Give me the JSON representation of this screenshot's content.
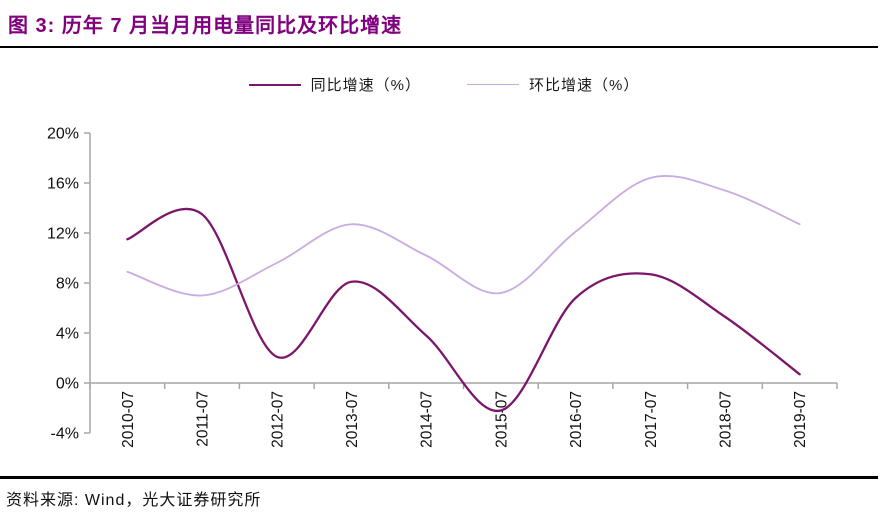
{
  "header": {
    "title": "图 3: 历年 7 月当月用电量同比及环比增速"
  },
  "source": {
    "text": "资料来源: Wind，光大证券研究所"
  },
  "colors": {
    "title": "#800080",
    "rule": "#000000",
    "axis": "#A6A6A6",
    "tick_label": "#111111",
    "series_yoy": "#7B166B",
    "series_mom": "#C9ABE2"
  },
  "chart_data": {
    "type": "line",
    "title": "历年7月当月用电量同比及环比增速",
    "categories": [
      "2010-07",
      "2011-07",
      "2012-07",
      "2013-07",
      "2014-07",
      "2015-07",
      "2016-07",
      "2017-07",
      "2018-07",
      "2019-07"
    ],
    "series": [
      {
        "name": "同比增速（%）",
        "color": "#7B166B",
        "width": 2.3,
        "values": [
          11.5,
          13.5,
          2.1,
          8.1,
          3.8,
          -2.2,
          6.8,
          8.7,
          5.3,
          0.7
        ]
      },
      {
        "name": "环比增速（%）",
        "color": "#C9ABE2",
        "width": 1.8,
        "values": [
          8.9,
          7.0,
          9.6,
          12.7,
          10.2,
          7.2,
          12.1,
          16.4,
          15.4,
          12.7
        ]
      }
    ],
    "ylim": [
      -4,
      20
    ],
    "yticks": [
      20,
      16,
      12,
      8,
      4,
      0,
      -4
    ],
    "ytick_suffix": "%",
    "grid": false,
    "smooth": true,
    "legend_position": "top",
    "xlabel": "",
    "ylabel": ""
  }
}
